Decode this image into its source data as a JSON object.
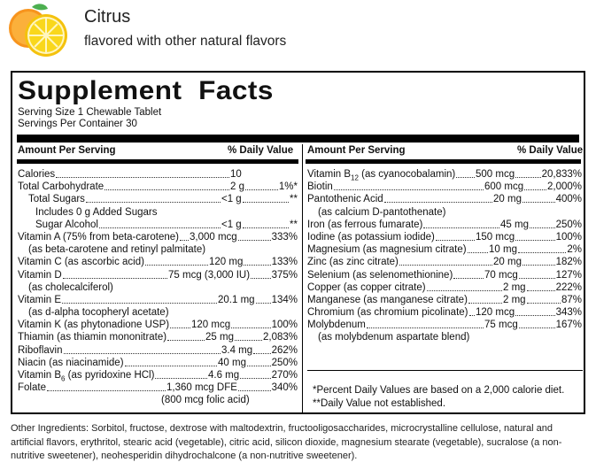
{
  "header": {
    "flavor": "Citrus",
    "subtitle": "flavored with other natural flavors"
  },
  "facts": {
    "title": "Supplement  Facts",
    "serving_size": "Serving Size 1 Chewable Tablet",
    "servings_per_container": "Servings Per Container 30",
    "col_amount": "Amount Per Serving",
    "col_dv": "% Daily Value"
  },
  "left_rows": [
    {
      "label": "Calories",
      "amount": "10",
      "dv": ""
    },
    {
      "label": "Total Carbohydrate",
      "amount": "2 g",
      "dv": "1%*"
    },
    {
      "label": "Total Sugars",
      "amount": "<1 g",
      "dv": "**"
    },
    {
      "label": "Includes 0 g Added Sugars",
      "amount": "",
      "dv": ""
    },
    {
      "label": "Sugar Alcohol",
      "amount": "<1 g",
      "dv": "**"
    },
    {
      "label": "Vitamin A (75% from beta-carotene)",
      "amount": "3,000 mcg",
      "dv": "333%"
    },
    {
      "label": "(as beta-carotene and retinyl palmitate)",
      "amount": "",
      "dv": ""
    },
    {
      "label": "Vitamin C (as ascorbic acid)",
      "amount": "120 mg",
      "dv": "133%"
    },
    {
      "label": "Vitamin D",
      "amount": "75 mcg (3,000 IU)",
      "dv": "375%"
    },
    {
      "label": "(as cholecalciferol)",
      "amount": "",
      "dv": ""
    },
    {
      "label": "Vitamin E",
      "amount": "20.1 mg",
      "dv": "134%"
    },
    {
      "label": "(as d-alpha tocopheryl acetate)",
      "amount": "",
      "dv": ""
    },
    {
      "label": "Vitamin K (as phytonadione USP)",
      "amount": "120 mcg",
      "dv": "100%"
    },
    {
      "label": "Thiamin (as thiamin mononitrate)",
      "amount": "25 mg",
      "dv": "2,083%"
    },
    {
      "label": "Riboflavin",
      "amount": "3.4 mg",
      "dv": "262%"
    },
    {
      "label": "Niacin (as niacinamide)",
      "amount": "40 mg",
      "dv": "250%"
    },
    {
      "label": "Vitamin B6 (as pyridoxine HCl)",
      "amount": "4.6 mg",
      "dv": "270%"
    },
    {
      "label": "Folate",
      "amount": "1,360 mcg DFE",
      "dv": "340%"
    },
    {
      "label": "(800 mcg folic acid)",
      "amount": "",
      "dv": ""
    }
  ],
  "right_rows": [
    {
      "label": "Vitamin B12 (as cyanocobalamin)",
      "amount": "500 mcg",
      "dv": "20,833%"
    },
    {
      "label": "Biotin",
      "amount": "600 mcg",
      "dv": "2,000%"
    },
    {
      "label": "Pantothenic Acid",
      "amount": "20 mg",
      "dv": "400%"
    },
    {
      "label": "(as calcium D-pantothenate)",
      "amount": "",
      "dv": ""
    },
    {
      "label": "Iron (as ferrous fumarate)",
      "amount": "45 mg",
      "dv": "250%"
    },
    {
      "label": "Iodine (as potassium iodide)",
      "amount": "150 mcg",
      "dv": "100%"
    },
    {
      "label": "Magnesium (as magnesium citrate)",
      "amount": "10 mg",
      "dv": "2%"
    },
    {
      "label": "Zinc (as zinc citrate)",
      "amount": "20 mg",
      "dv": "182%"
    },
    {
      "label": "Selenium (as selenomethionine)",
      "amount": "70 mcg",
      "dv": "127%"
    },
    {
      "label": "Copper (as copper citrate)",
      "amount": "2 mg",
      "dv": "222%"
    },
    {
      "label": "Manganese (as manganese citrate)",
      "amount": "2 mg",
      "dv": "87%"
    },
    {
      "label": "Chromium (as chromium picolinate)",
      "amount": "120 mcg",
      "dv": "343%"
    },
    {
      "label": "Molybdenum",
      "amount": "75 mcg",
      "dv": "167%"
    },
    {
      "label": "(as molybdenum aspartate blend)",
      "amount": "",
      "dv": ""
    }
  ],
  "footnotes": {
    "dv_note": "*Percent Daily Values are based on a 2,000 calorie diet.",
    "not_established": "**Daily Value not established."
  },
  "ingredients": "Other Ingredients: Sorbitol, fructose, dextrose with maltodextrin, fructooligosaccharides, microcrystalline cellulose, natural and artificial flavors, erythritol, stearic acid (vegetable), citric acid, silicon dioxide, magnesium stearate (vegetable), sucralose (a non-nutritive sweetener), neohesperidin dihydrochalcone (a non-nutritive sweetener)."
}
